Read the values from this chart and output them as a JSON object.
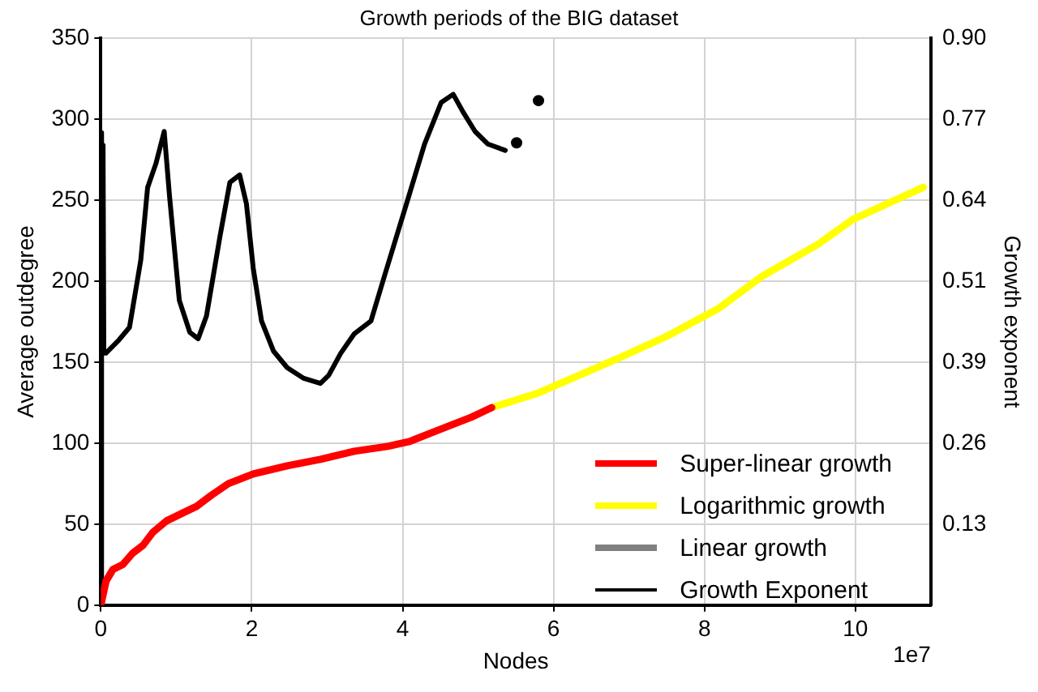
{
  "chart_data": {
    "type": "line",
    "title": "Growth periods of the BIG dataset",
    "xlabel": "Nodes",
    "ylabel": "Average outdegree",
    "y2label": "Growth exponent",
    "annotations": [
      "1e7"
    ],
    "xlim": [
      0,
      11
    ],
    "xticks": [
      0,
      2,
      4,
      6,
      8,
      10
    ],
    "ylim": [
      0,
      350
    ],
    "yticks": [
      0,
      50,
      100,
      150,
      200,
      250,
      300,
      350
    ],
    "y2lim": [
      0,
      0.9
    ],
    "y2ticks": [
      {
        "value": 0.1286,
        "label": "0.13"
      },
      {
        "value": 0.2571,
        "label": "0.26"
      },
      {
        "value": 0.3857,
        "label": "0.39"
      },
      {
        "value": 0.5143,
        "label": "0.51"
      },
      {
        "value": 0.6429,
        "label": "0.64"
      },
      {
        "value": 0.7714,
        "label": "0.77"
      },
      {
        "value": 0.9,
        "label": "0.90"
      }
    ],
    "grid": true,
    "legend": "bottom right",
    "marker": "none",
    "line_style": "solid",
    "series": [
      {
        "name": "Super-linear growth",
        "color": "#ff0000",
        "x": [
          0,
          0.07,
          0.16,
          0.29,
          0.42,
          0.56,
          0.69,
          0.87,
          1.09,
          1.27,
          1.47,
          1.69,
          2.02,
          2.47,
          2.91,
          3.36,
          3.8,
          4.09,
          4.47,
          4.91,
          5.18
        ],
        "values": [
          0,
          15,
          22,
          25,
          32,
          37,
          45,
          52,
          57,
          61,
          68,
          75,
          81,
          86,
          90,
          95,
          98,
          101,
          108,
          116,
          122
        ]
      },
      {
        "name": "Logarithmic growth",
        "color": "#ffff00",
        "x": [
          5.18,
          5.8,
          6.84,
          7.5,
          8.18,
          8.76,
          9.51,
          9.96,
          10.9
        ],
        "values": [
          122,
          131,
          152,
          166,
          183,
          203,
          223,
          238,
          258
        ]
      },
      {
        "name": "Linear growth",
        "color": "#808080"
      },
      {
        "name": "Growth Exponent",
        "color": "#000000",
        "axis": "y2",
        "x": [
          0,
          0.01,
          0.02,
          0.03,
          0.04,
          0.067,
          0.24,
          0.38,
          0.53,
          0.62,
          0.73,
          0.84,
          0.91,
          1.04,
          1.18,
          1.29,
          1.4,
          1.58,
          1.71,
          1.84,
          1.93,
          2.02,
          2.13,
          2.29,
          2.47,
          2.69,
          2.91,
          3.02,
          3.18,
          3.36,
          3.58,
          3.76,
          4.02,
          4.29,
          4.51,
          4.67,
          4.8,
          4.96,
          5.13,
          5.36
        ],
        "values": [
          0,
          0.75,
          0.4,
          0.73,
          0.4,
          0.4,
          0.421,
          0.441,
          0.548,
          0.663,
          0.701,
          0.752,
          0.65,
          0.484,
          0.433,
          0.423,
          0.459,
          0.586,
          0.671,
          0.683,
          0.637,
          0.535,
          0.451,
          0.403,
          0.377,
          0.36,
          0.352,
          0.365,
          0.4,
          0.431,
          0.451,
          0.523,
          0.625,
          0.732,
          0.798,
          0.811,
          0.783,
          0.752,
          0.732,
          0.722
        ]
      },
      {
        "type": "scatter",
        "marker": "circle",
        "color": "#000000",
        "axis": "y2",
        "x": [
          5.51,
          5.8
        ],
        "values": [
          0.734,
          0.801
        ]
      }
    ]
  }
}
